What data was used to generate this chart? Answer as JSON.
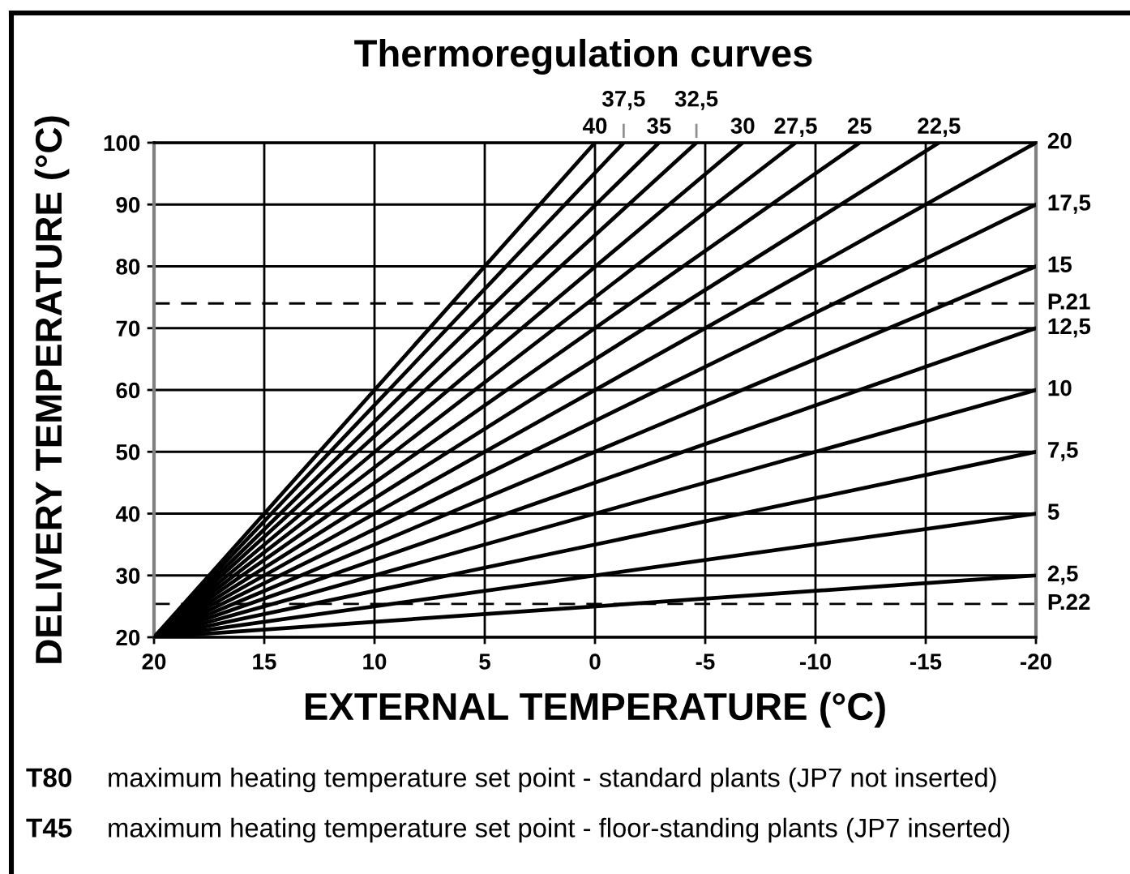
{
  "chart_data": {
    "type": "line",
    "title": "Thermoregulation curves",
    "xlabel": "EXTERNAL TEMPERATURE (°C)",
    "ylabel": "DELIVERY TEMPERATURE (°C)",
    "xlim": [
      20,
      -20
    ],
    "xticks": [
      20,
      15,
      10,
      5,
      0,
      -5,
      -10,
      -15,
      -20
    ],
    "ylim": [
      20,
      100
    ],
    "yticks": [
      20,
      30,
      40,
      50,
      60,
      70,
      80,
      90,
      100
    ],
    "grid": true,
    "line_style": "solid",
    "series": [
      {
        "name": "40",
        "color": "#000000",
        "x": [
          20,
          0
        ],
        "values": [
          20,
          100
        ]
      },
      {
        "name": "37,5",
        "color": "#000000",
        "x": [
          20,
          -1.3
        ],
        "values": [
          20,
          100
        ]
      },
      {
        "name": "35",
        "color": "#000000",
        "x": [
          20,
          -2.9
        ],
        "values": [
          20,
          100
        ]
      },
      {
        "name": "32,5",
        "color": "#000000",
        "x": [
          20,
          -4.6
        ],
        "values": [
          20,
          100
        ]
      },
      {
        "name": "30",
        "color": "#000000",
        "x": [
          20,
          -6.7
        ],
        "values": [
          20,
          100
        ]
      },
      {
        "name": "27,5",
        "color": "#000000",
        "x": [
          20,
          -9.1
        ],
        "values": [
          20,
          100
        ]
      },
      {
        "name": "25",
        "color": "#000000",
        "x": [
          20,
          -12
        ],
        "values": [
          20,
          100
        ]
      },
      {
        "name": "22,5",
        "color": "#000000",
        "x": [
          20,
          -15.6
        ],
        "values": [
          20,
          100
        ]
      },
      {
        "name": "20",
        "color": "#000000",
        "x": [
          20,
          -20
        ],
        "values": [
          20,
          100
        ]
      },
      {
        "name": "17,5",
        "color": "#000000",
        "x": [
          20,
          -20
        ],
        "values": [
          20,
          90
        ]
      },
      {
        "name": "15",
        "color": "#000000",
        "x": [
          20,
          -20
        ],
        "values": [
          20,
          80
        ]
      },
      {
        "name": "12,5",
        "color": "#000000",
        "x": [
          20,
          -20
        ],
        "values": [
          20,
          70
        ]
      },
      {
        "name": "10",
        "color": "#000000",
        "x": [
          20,
          -20
        ],
        "values": [
          20,
          60
        ]
      },
      {
        "name": "7,5",
        "color": "#000000",
        "x": [
          20,
          -20
        ],
        "values": [
          20,
          50
        ]
      },
      {
        "name": "5",
        "color": "#000000",
        "x": [
          20,
          -20
        ],
        "values": [
          20,
          40
        ]
      },
      {
        "name": "2,5",
        "color": "#000000",
        "x": [
          20,
          -20
        ],
        "values": [
          20,
          30
        ]
      }
    ],
    "ref_lines": [
      {
        "axis": "y",
        "value": 74,
        "label": "P.21",
        "color": "#000000",
        "line_style": "dashed"
      },
      {
        "axis": "y",
        "value": 25.4,
        "label": "P.22",
        "color": "#000000",
        "line_style": "dashed"
      }
    ],
    "annotations": [
      "T80 maximum heating temperature set point - standard plants (JP7 not inserted)",
      "T45 maximum heating temperature set point - floor-standing plants (JP7 inserted)"
    ]
  }
}
